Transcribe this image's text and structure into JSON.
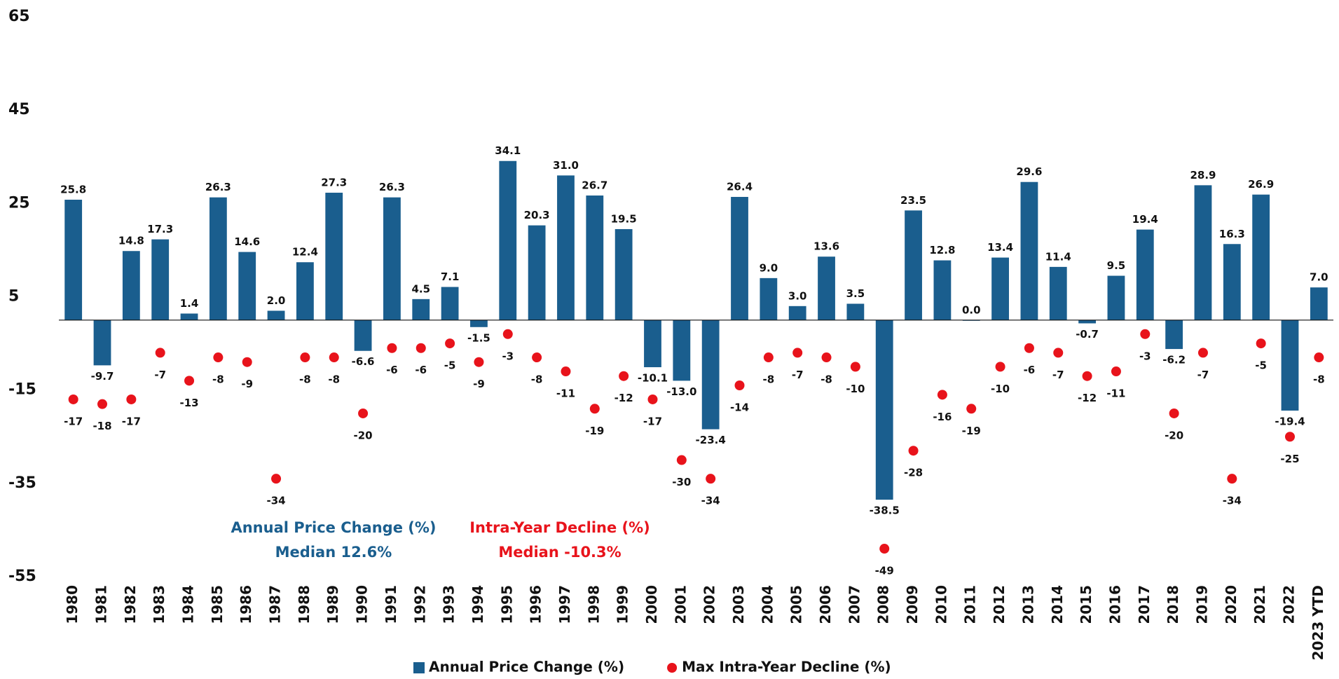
{
  "chart_data": {
    "type": "bar",
    "categories": [
      "1980",
      "1981",
      "1982",
      "1983",
      "1984",
      "1985",
      "1986",
      "1987",
      "1988",
      "1989",
      "1990",
      "1991",
      "1992",
      "1993",
      "1994",
      "1995",
      "1996",
      "1997",
      "1998",
      "1999",
      "2000",
      "2001",
      "2002",
      "2003",
      "2004",
      "2005",
      "2006",
      "2007",
      "2008",
      "2009",
      "2010",
      "2011",
      "2012",
      "2013",
      "2014",
      "2015",
      "2016",
      "2017",
      "2018",
      "2019",
      "2020",
      "2021",
      "2022",
      "2023 YTD"
    ],
    "series": [
      {
        "name": "Annual Price Change (%)",
        "type": "bar",
        "color": "#1a5e8e",
        "values": [
          25.8,
          -9.7,
          14.8,
          17.3,
          1.4,
          26.3,
          14.6,
          2.0,
          12.4,
          27.3,
          -6.6,
          26.3,
          4.5,
          7.1,
          -1.5,
          34.1,
          20.3,
          31.0,
          26.7,
          19.5,
          -10.1,
          -13.0,
          -23.4,
          26.4,
          9.0,
          3.0,
          13.6,
          3.5,
          -38.5,
          23.5,
          12.8,
          0.0,
          13.4,
          29.6,
          11.4,
          -0.7,
          9.5,
          19.4,
          -6.2,
          28.9,
          16.3,
          26.9,
          -19.4,
          7.0
        ],
        "value_labels": [
          "25.8",
          "-9.7",
          "14.8",
          "17.3",
          "1.4",
          "26.3",
          "14.6",
          "2.0",
          "12.4",
          "27.3",
          "-6.6",
          "26.3",
          "4.5",
          "7.1",
          "-1.5",
          "34.1",
          "20.3",
          "31.0",
          "26.7",
          "19.5",
          "-10.1",
          "-13.0",
          "-23.4",
          "26.4",
          "9.0",
          "3.0",
          "13.6",
          "3.5",
          "-38.5",
          "23.5",
          "12.8",
          "0.0",
          "13.4",
          "29.6",
          "11.4",
          "-0.7",
          "9.5",
          "19.4",
          "-6.2",
          "28.9",
          "16.3",
          "26.9",
          "-19.4",
          "7.0"
        ]
      },
      {
        "name": "Max Intra-Year Decline (%)",
        "type": "scatter",
        "color": "#e8131b",
        "values": [
          -17,
          -18,
          -17,
          -7,
          -13,
          -8,
          -9,
          -34,
          -8,
          -8,
          -20,
          -6,
          -6,
          -5,
          -9,
          -3,
          -8,
          -11,
          -19,
          -12,
          -17,
          -30,
          -34,
          -14,
          -8,
          -7,
          -8,
          -10,
          -49,
          -28,
          -16,
          -19,
          -10,
          -6,
          -7,
          -12,
          -11,
          -3,
          -20,
          -7,
          -34,
          -5,
          -25,
          -8
        ]
      }
    ],
    "ylim": [
      -55,
      65
    ],
    "yticks": [
      65,
      45,
      25,
      5,
      -15,
      -35,
      -55
    ],
    "annotations": [
      {
        "text": "Annual Price Change (%)",
        "color": "#1a5e8e"
      },
      {
        "text": "Median 12.6%",
        "color": "#1a5e8e"
      },
      {
        "text": "Intra-Year Decline (%)",
        "color": "#e8131b"
      },
      {
        "text": "Median -10.3%",
        "color": "#e8131b"
      }
    ],
    "legend": "bottom"
  }
}
